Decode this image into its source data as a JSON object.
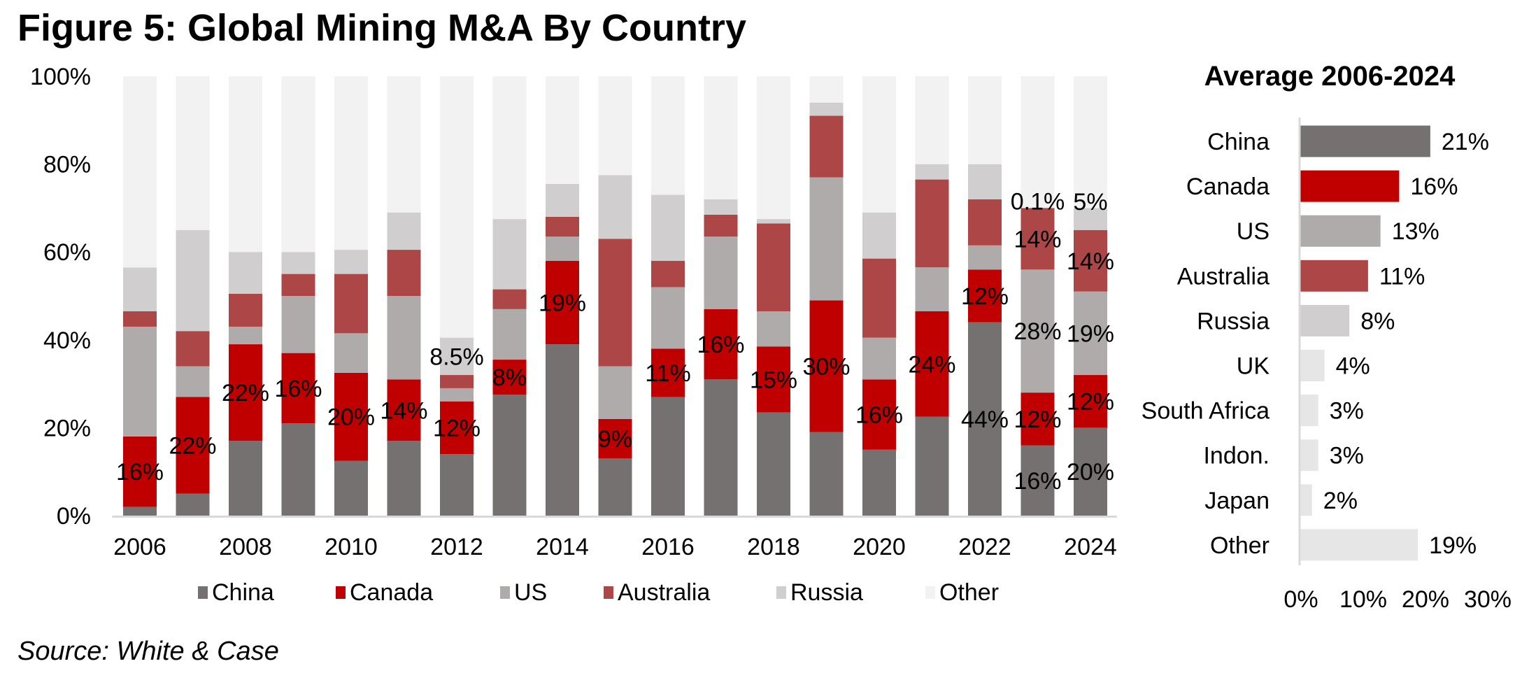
{
  "figure": {
    "title": "Figure 5: Global Mining M&A By Country",
    "source": "Source: White & Case"
  },
  "colors": {
    "China": "#767171",
    "Canada": "#C00000",
    "US": "#AFABAB",
    "Australia": "#AD4646",
    "Russia": "#D0CECE",
    "Other": "#F2F2F2",
    "minor": "#E7E6E6",
    "axis": "#D9D9D9"
  },
  "chart_data": [
    {
      "type": "bar",
      "stacked": true,
      "orientation": "vertical",
      "title": "",
      "xlabel": "",
      "ylabel": "",
      "ylim": [
        0,
        100
      ],
      "yticks": [
        "0%",
        "20%",
        "40%",
        "60%",
        "80%",
        "100%"
      ],
      "ytick_values": [
        0,
        20,
        40,
        60,
        80,
        100
      ],
      "grid": false,
      "legend_position": "bottom",
      "categories": [
        "2006",
        "2007",
        "2008",
        "2009",
        "2010",
        "2011",
        "2012",
        "2013",
        "2014",
        "2015",
        "2016",
        "2017",
        "2018",
        "2019",
        "2020",
        "2021",
        "2022",
        "2023",
        "2024"
      ],
      "xtick_labels": [
        "2006",
        "",
        "2008",
        "",
        "2010",
        "",
        "2012",
        "",
        "2014",
        "",
        "2016",
        "",
        "2018",
        "",
        "2020",
        "",
        "2022",
        "",
        "2024"
      ],
      "series": [
        {
          "name": "China",
          "values": [
            2,
            5,
            17,
            21,
            12.5,
            17,
            14,
            27.5,
            39,
            13,
            27,
            31,
            23.5,
            19,
            15,
            22.5,
            44,
            16,
            20
          ]
        },
        {
          "name": "Canada",
          "values": [
            16,
            22,
            22,
            16,
            20,
            14,
            12,
            8,
            19,
            9,
            11,
            16,
            15,
            30,
            16,
            24,
            12,
            12,
            12
          ]
        },
        {
          "name": "US",
          "values": [
            25,
            7,
            4,
            13,
            9,
            19,
            3,
            11.5,
            5.5,
            12,
            14,
            16.5,
            8,
            28,
            9.5,
            10,
            5.5,
            28,
            19
          ]
        },
        {
          "name": "Australia",
          "values": [
            3.5,
            8,
            7.5,
            5,
            13.5,
            10.5,
            3,
            4.5,
            4.5,
            29,
            6,
            5,
            20,
            14,
            18,
            20,
            10.5,
            14,
            14
          ]
        },
        {
          "name": "Russia",
          "values": [
            10,
            23,
            9.5,
            5,
            5.5,
            8.5,
            8.5,
            16,
            7.5,
            14.5,
            15,
            3.5,
            1,
            3,
            10.5,
            3.5,
            8,
            0.1,
            5
          ]
        },
        {
          "name": "Other",
          "values": [
            43.5,
            35,
            40,
            40,
            39.5,
            31,
            59.5,
            32.5,
            24.5,
            22.5,
            27,
            28,
            32.5,
            6,
            31,
            20,
            20,
            29.9,
            30
          ]
        }
      ],
      "data_labels": [
        {
          "category": "2006",
          "series": "Canada",
          "text": "16%"
        },
        {
          "category": "2007",
          "series": "Canada",
          "text": "22%"
        },
        {
          "category": "2008",
          "series": "Canada",
          "text": "22%"
        },
        {
          "category": "2009",
          "series": "Canada",
          "text": "16%"
        },
        {
          "category": "2010",
          "series": "Canada",
          "text": "20%"
        },
        {
          "category": "2011",
          "series": "Canada",
          "text": "14%"
        },
        {
          "category": "2012",
          "series": "Canada",
          "text": "12%"
        },
        {
          "category": "2012",
          "series": "Russia",
          "text": "8.5%"
        },
        {
          "category": "2013",
          "series": "Canada",
          "text": "8%"
        },
        {
          "category": "2014",
          "series": "Canada",
          "text": "19%"
        },
        {
          "category": "2015",
          "series": "Canada",
          "text": "9%"
        },
        {
          "category": "2016",
          "series": "Canada",
          "text": "11%"
        },
        {
          "category": "2017",
          "series": "Canada",
          "text": "16%"
        },
        {
          "category": "2018",
          "series": "Canada",
          "text": "15%"
        },
        {
          "category": "2019",
          "series": "Canada",
          "text": "30%"
        },
        {
          "category": "2020",
          "series": "Canada",
          "text": "16%"
        },
        {
          "category": "2021",
          "series": "Canada",
          "text": "24%"
        },
        {
          "category": "2022",
          "series": "China",
          "text": "44%"
        },
        {
          "category": "2022",
          "series": "Canada",
          "text": "12%"
        },
        {
          "category": "2023",
          "series": "China",
          "text": "16%"
        },
        {
          "category": "2023",
          "series": "Canada",
          "text": "12%"
        },
        {
          "category": "2023",
          "series": "US",
          "text": "28%"
        },
        {
          "category": "2023",
          "series": "Australia",
          "text": "14%"
        },
        {
          "category": "2023",
          "series": "Russia",
          "text": "0.1%"
        },
        {
          "category": "2024",
          "series": "China",
          "text": "20%"
        },
        {
          "category": "2024",
          "series": "Canada",
          "text": "12%"
        },
        {
          "category": "2024",
          "series": "US",
          "text": "19%"
        },
        {
          "category": "2024",
          "series": "Australia",
          "text": "14%"
        },
        {
          "category": "2024",
          "series": "Russia",
          "text": "5%"
        }
      ],
      "legend": [
        "China",
        "Canada",
        "US",
        "Australia",
        "Russia",
        "Other"
      ]
    },
    {
      "type": "bar",
      "orientation": "horizontal",
      "title": "Average 2006-2024",
      "xlabel": "",
      "ylabel": "",
      "xlim": [
        0,
        30
      ],
      "xticks": [
        "0%",
        "10%",
        "20%",
        "30%"
      ],
      "xtick_values": [
        0,
        10,
        20,
        30
      ],
      "grid": false,
      "categories": [
        "China",
        "Canada",
        "US",
        "Australia",
        "Russia",
        "UK",
        "South Africa",
        "Indon.",
        "Japan",
        "Other"
      ],
      "values": [
        21,
        16,
        13,
        11,
        8,
        4,
        3,
        3,
        2,
        19
      ],
      "labels": [
        "21%",
        "16%",
        "13%",
        "11%",
        "8%",
        "4%",
        "3%",
        "3%",
        "2%",
        "19%"
      ],
      "bar_colors": [
        "#767171",
        "#C00000",
        "#AFABAB",
        "#AD4646",
        "#D0CECE",
        "#E7E6E6",
        "#E7E6E6",
        "#E7E6E6",
        "#E7E6E6",
        "#E7E6E6"
      ]
    }
  ]
}
